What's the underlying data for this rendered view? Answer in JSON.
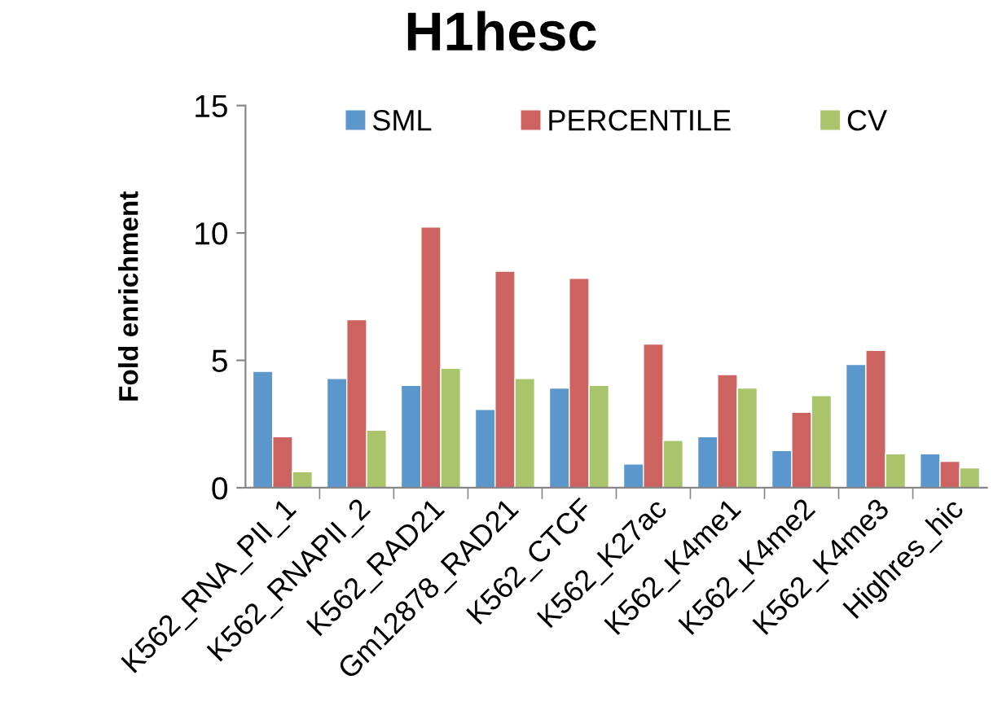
{
  "chart_data": {
    "type": "bar",
    "title": "H1hesc",
    "ylabel": "Fold enrichment",
    "categories": [
      "K562_RNA_PII_1",
      "K562_RNAPII_2",
      "K562_RAD21",
      "Gm12878_RAD21",
      "K562_CTCF",
      "K562_K27ac",
      "K562_K4me1",
      "K562_K4me2",
      "K562_K4me3",
      "Highres_hic"
    ],
    "series": [
      {
        "name": "SML",
        "color": "#5b96cc",
        "values": [
          4.57,
          4.29,
          4.02,
          3.07,
          3.91,
          0.93,
          2.0,
          1.46,
          4.84,
          1.33
        ]
      },
      {
        "name": "PERCENTILE",
        "color": "#cd6360",
        "values": [
          2.0,
          6.6,
          10.23,
          8.5,
          8.22,
          5.64,
          4.44,
          2.96,
          5.39,
          1.04
        ]
      },
      {
        "name": "CV",
        "color": "#a9c46a",
        "values": [
          0.63,
          2.26,
          4.69,
          4.29,
          4.02,
          1.86,
          3.91,
          3.62,
          1.33,
          0.78
        ]
      }
    ],
    "ylim": [
      0,
      15
    ],
    "yticks": [
      0,
      5,
      10,
      15
    ],
    "grid": false,
    "legend": "top"
  }
}
